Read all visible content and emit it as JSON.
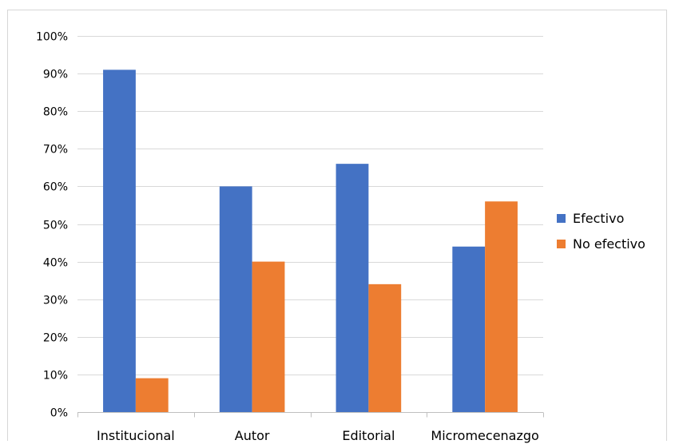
{
  "chart_data": {
    "type": "bar",
    "categories": [
      "Institucional",
      "Autor",
      "Editorial",
      "Micromecenazgo"
    ],
    "series": [
      {
        "name": "Efectivo",
        "values": [
          91,
          60,
          66,
          44
        ],
        "color": "#4472c4"
      },
      {
        "name": "No efectivo",
        "values": [
          9,
          40,
          34,
          56
        ],
        "color": "#ed7d31"
      }
    ],
    "ylim": [
      0,
      100
    ],
    "yticks": [
      0,
      10,
      20,
      30,
      40,
      50,
      60,
      70,
      80,
      90,
      100
    ],
    "ytick_labels": [
      "0%",
      "10%",
      "20%",
      "30%",
      "40%",
      "50%",
      "60%",
      "70%",
      "80%",
      "90%",
      "100%"
    ],
    "grid": true,
    "legend": "right",
    "gridline_color": "#d9d9d9",
    "axis_color": "#bfbfbf"
  }
}
